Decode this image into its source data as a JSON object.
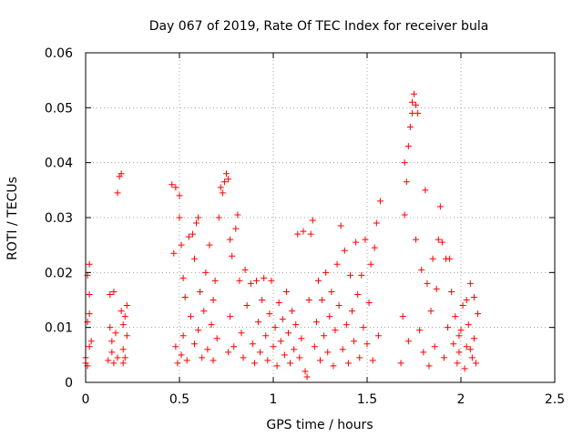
{
  "chart_data": {
    "type": "scatter",
    "title": "Day 067 of 2019, Rate Of TEC Index for receiver bula",
    "xlabel": "GPS time / hours",
    "ylabel": "ROTI / TECUs",
    "xlim": [
      0,
      2.5
    ],
    "ylim": [
      0,
      0.06
    ],
    "xticks": [
      0,
      0.5,
      1,
      1.5,
      2,
      2.5
    ],
    "xtick_labels": [
      "0",
      "0.5",
      "1",
      "1.5",
      "2",
      "2.5"
    ],
    "yticks": [
      0,
      0.01,
      0.02,
      0.03,
      0.04,
      0.05,
      0.06
    ],
    "ytick_labels": [
      "0",
      "0.01",
      "0.02",
      "0.03",
      "0.04",
      "0.05",
      "0.06"
    ],
    "grid": true,
    "marker": "+",
    "color": "#ff0000",
    "series": [
      {
        "name": "ROTI",
        "points": [
          [
            0.0,
            0.0045
          ],
          [
            0.01,
            0.003
          ],
          [
            0.01,
            0.011
          ],
          [
            0.02,
            0.0065
          ],
          [
            0.02,
            0.016
          ],
          [
            0.02,
            0.0215
          ],
          [
            0.01,
            0.0195
          ],
          [
            0.0,
            0.0035
          ],
          [
            0.03,
            0.0075
          ],
          [
            0.02,
            0.0125
          ],
          [
            0.12,
            0.004
          ],
          [
            0.13,
            0.01
          ],
          [
            0.13,
            0.016
          ],
          [
            0.14,
            0.0055
          ],
          [
            0.15,
            0.0035
          ],
          [
            0.15,
            0.0165
          ],
          [
            0.16,
            0.009
          ],
          [
            0.17,
            0.0345
          ],
          [
            0.18,
            0.0375
          ],
          [
            0.19,
            0.038
          ],
          [
            0.19,
            0.013
          ],
          [
            0.2,
            0.006
          ],
          [
            0.2,
            0.0105
          ],
          [
            0.21,
            0.0045
          ],
          [
            0.22,
            0.014
          ],
          [
            0.22,
            0.0085
          ],
          [
            0.17,
            0.0045
          ],
          [
            0.2,
            0.0035
          ],
          [
            0.14,
            0.0075
          ],
          [
            0.21,
            0.012
          ],
          [
            0.46,
            0.036
          ],
          [
            0.47,
            0.0235
          ],
          [
            0.48,
            0.0355
          ],
          [
            0.48,
            0.0065
          ],
          [
            0.49,
            0.0035
          ],
          [
            0.5,
            0.034
          ],
          [
            0.5,
            0.03
          ],
          [
            0.51,
            0.025
          ],
          [
            0.51,
            0.005
          ],
          [
            0.52,
            0.019
          ],
          [
            0.52,
            0.0085
          ],
          [
            0.53,
            0.0155
          ],
          [
            0.54,
            0.004
          ],
          [
            0.55,
            0.0265
          ],
          [
            0.56,
            0.012
          ],
          [
            0.57,
            0.027
          ],
          [
            0.58,
            0.007
          ],
          [
            0.58,
            0.0225
          ],
          [
            0.59,
            0.029
          ],
          [
            0.6,
            0.0095
          ],
          [
            0.6,
            0.03
          ],
          [
            0.61,
            0.0165
          ],
          [
            0.62,
            0.0045
          ],
          [
            0.63,
            0.013
          ],
          [
            0.64,
            0.02
          ],
          [
            0.65,
            0.006
          ],
          [
            0.66,
            0.025
          ],
          [
            0.67,
            0.0105
          ],
          [
            0.68,
            0.015
          ],
          [
            0.68,
            0.004
          ],
          [
            0.69,
            0.0185
          ],
          [
            0.7,
            0.008
          ],
          [
            0.71,
            0.03
          ],
          [
            0.72,
            0.0355
          ],
          [
            0.73,
            0.0345
          ],
          [
            0.74,
            0.0365
          ],
          [
            0.75,
            0.038
          ],
          [
            0.76,
            0.037
          ],
          [
            0.77,
            0.026
          ],
          [
            0.78,
            0.023
          ],
          [
            0.76,
            0.0055
          ],
          [
            0.77,
            0.012
          ],
          [
            0.79,
            0.0065
          ],
          [
            0.8,
            0.028
          ],
          [
            0.81,
            0.0305
          ],
          [
            0.82,
            0.0185
          ],
          [
            0.83,
            0.009
          ],
          [
            0.84,
            0.0045
          ],
          [
            0.85,
            0.0205
          ],
          [
            0.86,
            0.014
          ],
          [
            0.88,
            0.018
          ],
          [
            0.89,
            0.007
          ],
          [
            0.9,
            0.0035
          ],
          [
            0.91,
            0.0185
          ],
          [
            0.92,
            0.011
          ],
          [
            0.93,
            0.0055
          ],
          [
            0.94,
            0.015
          ],
          [
            0.95,
            0.019
          ],
          [
            0.96,
            0.0085
          ],
          [
            0.97,
            0.004
          ],
          [
            0.98,
            0.0125
          ],
          [
            0.99,
            0.0185
          ],
          [
            1.0,
            0.0065
          ],
          [
            1.01,
            0.01
          ],
          [
            1.02,
            0.003
          ],
          [
            1.03,
            0.0145
          ],
          [
            1.04,
            0.0075
          ],
          [
            1.05,
            0.0115
          ],
          [
            1.06,
            0.005
          ],
          [
            1.07,
            0.0165
          ],
          [
            1.08,
            0.009
          ],
          [
            1.09,
            0.0035
          ],
          [
            1.1,
            0.013
          ],
          [
            1.11,
            0.006
          ],
          [
            1.12,
            0.0105
          ],
          [
            1.13,
            0.027
          ],
          [
            1.14,
            0.0045
          ],
          [
            1.15,
            0.008
          ],
          [
            1.16,
            0.0275
          ],
          [
            1.17,
            0.002
          ],
          [
            1.18,
            0.001
          ],
          [
            1.19,
            0.015
          ],
          [
            1.2,
            0.027
          ],
          [
            1.21,
            0.0295
          ],
          [
            1.22,
            0.0065
          ],
          [
            1.23,
            0.011
          ],
          [
            1.24,
            0.0185
          ],
          [
            1.25,
            0.004
          ],
          [
            1.26,
            0.015
          ],
          [
            1.27,
            0.0085
          ],
          [
            1.28,
            0.02
          ],
          [
            1.29,
            0.0055
          ],
          [
            1.3,
            0.012
          ],
          [
            1.31,
            0.0165
          ],
          [
            1.32,
            0.003
          ],
          [
            1.33,
            0.0095
          ],
          [
            1.34,
            0.0215
          ],
          [
            1.35,
            0.014
          ],
          [
            1.36,
            0.0285
          ],
          [
            1.37,
            0.006
          ],
          [
            1.38,
            0.024
          ],
          [
            1.39,
            0.0105
          ],
          [
            1.4,
            0.0035
          ],
          [
            1.41,
            0.0195
          ],
          [
            1.42,
            0.013
          ],
          [
            1.43,
            0.0075
          ],
          [
            1.44,
            0.0255
          ],
          [
            1.45,
            0.016
          ],
          [
            1.46,
            0.0045
          ],
          [
            1.47,
            0.0195
          ],
          [
            1.48,
            0.01
          ],
          [
            1.49,
            0.026
          ],
          [
            1.5,
            0.007
          ],
          [
            1.51,
            0.0145
          ],
          [
            1.52,
            0.0215
          ],
          [
            1.53,
            0.004
          ],
          [
            1.54,
            0.0245
          ],
          [
            1.55,
            0.029
          ],
          [
            1.56,
            0.0085
          ],
          [
            1.57,
            0.033
          ],
          [
            1.68,
            0.0035
          ],
          [
            1.69,
            0.012
          ],
          [
            1.7,
            0.0305
          ],
          [
            1.7,
            0.04
          ],
          [
            1.71,
            0.0365
          ],
          [
            1.72,
            0.043
          ],
          [
            1.72,
            0.0075
          ],
          [
            1.73,
            0.0465
          ],
          [
            1.74,
            0.049
          ],
          [
            1.74,
            0.051
          ],
          [
            1.75,
            0.0525
          ],
          [
            1.76,
            0.0505
          ],
          [
            1.76,
            0.026
          ],
          [
            1.77,
            0.049
          ],
          [
            1.78,
            0.0095
          ],
          [
            1.79,
            0.0205
          ],
          [
            1.8,
            0.0055
          ],
          [
            1.81,
            0.035
          ],
          [
            1.82,
            0.018
          ],
          [
            1.83,
            0.003
          ],
          [
            1.84,
            0.013
          ],
          [
            1.85,
            0.0225
          ],
          [
            1.86,
            0.0065
          ],
          [
            1.87,
            0.017
          ],
          [
            1.88,
            0.026
          ],
          [
            1.89,
            0.032
          ],
          [
            1.9,
            0.0255
          ],
          [
            1.91,
            0.0045
          ],
          [
            1.92,
            0.0225
          ],
          [
            1.93,
            0.01
          ],
          [
            1.94,
            0.0225
          ],
          [
            1.95,
            0.0165
          ],
          [
            1.96,
            0.007
          ],
          [
            1.97,
            0.012
          ],
          [
            1.98,
            0.0035
          ],
          [
            1.99,
            0.0055
          ],
          [
            2.0,
            0.0095
          ],
          [
            2.01,
            0.014
          ],
          [
            2.02,
            0.0025
          ],
          [
            2.03,
            0.0065
          ],
          [
            2.04,
            0.0105
          ],
          [
            2.05,
            0.018
          ],
          [
            2.06,
            0.0045
          ],
          [
            2.07,
            0.0155
          ],
          [
            2.08,
            0.0035
          ],
          [
            2.09,
            0.0125
          ],
          [
            2.07,
            0.008
          ],
          [
            2.05,
            0.006
          ],
          [
            2.03,
            0.015
          ],
          [
            1.99,
            0.0085
          ]
        ]
      }
    ]
  }
}
